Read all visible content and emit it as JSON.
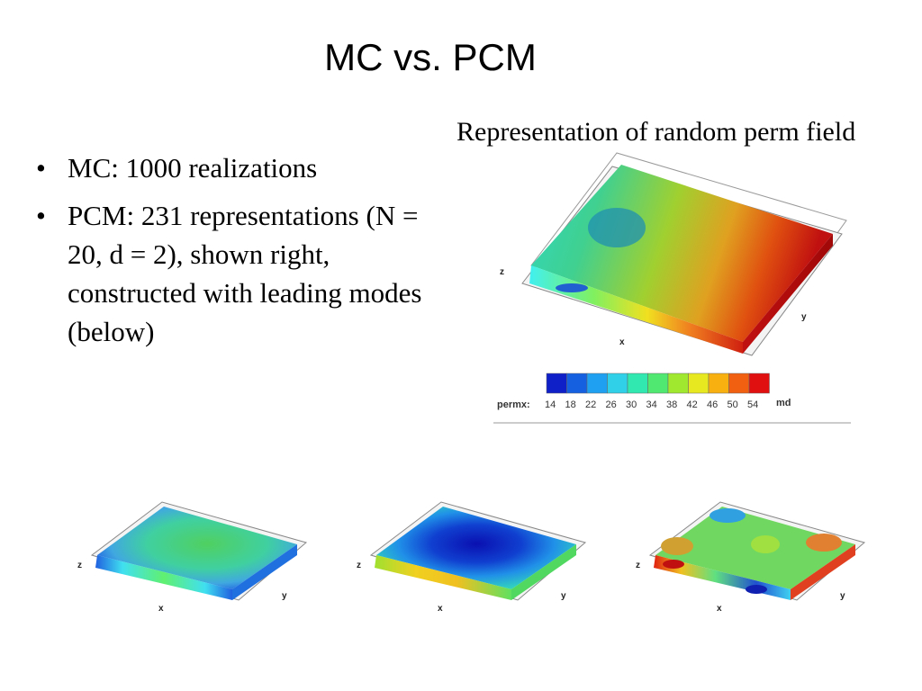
{
  "slide": {
    "title": "MC vs. PCM",
    "figure_caption": "Representation of random perm field",
    "bullets": [
      "MC: 1000 realizations",
      "PCM: 231 representations (N = 20, d = 2), shown right, constructed with leading modes (below)"
    ]
  },
  "main_figure": {
    "axes": {
      "x": "x",
      "y": "y",
      "z": "z"
    },
    "colorbar": {
      "label": "permx:",
      "unit": "md",
      "ticks": [
        "14",
        "18",
        "22",
        "26",
        "30",
        "34",
        "38",
        "42",
        "46",
        "50",
        "54"
      ],
      "colors": [
        "#1020c8",
        "#1560e0",
        "#20a0f0",
        "#30d0e8",
        "#30e8b0",
        "#50e870",
        "#a0e830",
        "#e8e820",
        "#f8b010",
        "#f06010",
        "#e01010"
      ]
    }
  },
  "mode_figures": [
    {
      "axes": {
        "x": "x",
        "y": "y",
        "z": "z"
      }
    },
    {
      "axes": {
        "x": "x",
        "y": "y",
        "z": "z"
      }
    },
    {
      "axes": {
        "x": "x",
        "y": "y",
        "z": "z"
      }
    }
  ]
}
